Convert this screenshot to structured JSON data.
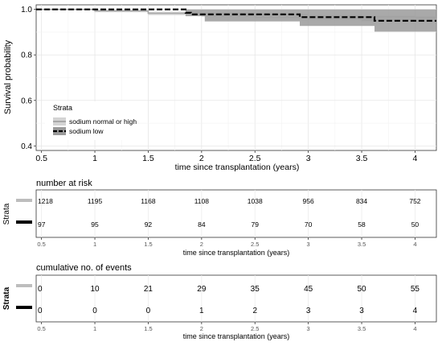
{
  "chart_data": [
    {
      "type": "line",
      "subtype": "kaplan-meier step survival curve with 95% confidence bands",
      "xlabel": "time since transplantation (years)",
      "ylabel": "Survival probability",
      "xlim": [
        0.45,
        4.2
      ],
      "ylim": [
        0.38,
        1.02
      ],
      "x_ticks": [
        0.5,
        1,
        1.5,
        2,
        2.5,
        3,
        3.5,
        4
      ],
      "y_ticks": [
        0.4,
        0.6,
        0.8,
        1.0
      ],
      "y_tick_labels": [
        "0.4",
        "0.6",
        "0.8",
        "1.0"
      ],
      "x_tick_labels": [
        "0.5",
        "1",
        "1.5",
        "2",
        "2.5",
        "3",
        "3.5",
        "4"
      ],
      "grid": true,
      "legend": {
        "title": "Strata",
        "placement": "bottom-left inside",
        "entries": [
          "sodium normal or high",
          "sodium low"
        ]
      },
      "series": [
        {
          "name": "sodium normal or high",
          "color": "#bdbdbd",
          "line_style": "solid",
          "steps": [
            [
              0.45,
              1.0
            ],
            [
              1.0,
              0.993
            ],
            [
              1.5,
              0.983
            ],
            [
              2.0,
              0.977
            ],
            [
              2.5,
              0.972
            ],
            [
              3.0,
              0.965
            ],
            [
              3.5,
              0.961
            ],
            [
              4.0,
              0.957
            ],
            [
              4.2,
              0.955
            ]
          ],
          "ci_band": [
            [
              0.45,
              1.0,
              1.0
            ],
            [
              1.0,
              0.988,
              0.998
            ],
            [
              1.5,
              0.975,
              0.99
            ],
            [
              2.0,
              0.968,
              0.985
            ],
            [
              2.5,
              0.962,
              0.98
            ],
            [
              3.0,
              0.955,
              0.975
            ],
            [
              3.5,
              0.949,
              0.972
            ],
            [
              4.0,
              0.944,
              0.969
            ],
            [
              4.2,
              0.942,
              0.967
            ]
          ]
        },
        {
          "name": "sodium low",
          "color": "#000000",
          "line_style": "dashed",
          "steps": [
            [
              0.45,
              1.0
            ],
            [
              1.85,
              1.0
            ],
            [
              1.85,
              0.985
            ],
            [
              1.9,
              0.985
            ],
            [
              1.9,
              0.978
            ],
            [
              2.92,
              0.978
            ],
            [
              2.92,
              0.966
            ],
            [
              3.62,
              0.966
            ],
            [
              3.62,
              0.95
            ],
            [
              4.2,
              0.95
            ]
          ],
          "ci_band": [
            [
              0.45,
              1.0,
              1.0
            ],
            [
              1.85,
              0.97,
              1.0
            ],
            [
              2.03,
              0.947,
              1.0
            ],
            [
              2.92,
              0.927,
              1.0
            ],
            [
              3.62,
              0.902,
              1.0
            ],
            [
              4.2,
              0.902,
              1.0
            ]
          ]
        }
      ]
    },
    {
      "type": "table",
      "title": "number at risk",
      "ylabel": "Strata",
      "xlabel": "time since transplantation (years)",
      "x": [
        "0.5",
        "1",
        "1.5",
        "2",
        "2.5",
        "3",
        "3.5",
        "4"
      ],
      "rows": [
        {
          "stratum_color": "#bdbdbd",
          "values": [
            "1218",
            "1195",
            "1168",
            "1108",
            "1038",
            "956",
            "834",
            "752"
          ]
        },
        {
          "stratum_color": "#000000",
          "values": [
            "97",
            "95",
            "92",
            "84",
            "79",
            "70",
            "58",
            "50"
          ]
        }
      ]
    },
    {
      "type": "table",
      "title": "cumulative no. of events",
      "ylabel": "Strata",
      "xlabel": "time since transplantation (years)",
      "x": [
        "0.5",
        "1",
        "1.5",
        "2",
        "2.5",
        "3",
        "3.5",
        "4"
      ],
      "rows": [
        {
          "stratum_color": "#bdbdbd",
          "values": [
            "0",
            "10",
            "21",
            "29",
            "35",
            "45",
            "50",
            "55"
          ]
        },
        {
          "stratum_color": "#000000",
          "values": [
            "0",
            "0",
            "0",
            "1",
            "2",
            "3",
            "3",
            "4"
          ]
        }
      ]
    }
  ]
}
